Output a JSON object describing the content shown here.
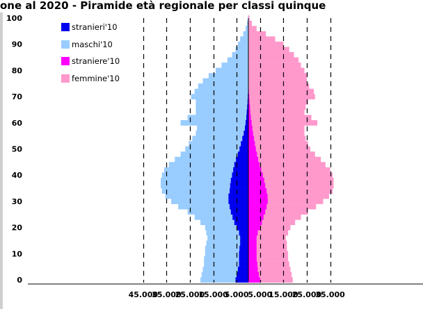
{
  "title": "one al 2020 - Piramide età regionale per classi quinque",
  "chart_data": {
    "type": "bar",
    "orientation": "horizontal-pyramid",
    "y_axis": {
      "min": 0,
      "max": 100,
      "ticks": [
        "0",
        "10",
        "20",
        "30",
        "40",
        "50",
        "60",
        "70",
        "80",
        "90",
        "100"
      ]
    },
    "x_axis": {
      "min": -45000,
      "max": 40000,
      "ticks": [
        {
          "value": -45000,
          "label": "45.000"
        },
        {
          "value": -35000,
          "label": "35.000"
        },
        {
          "value": -25000,
          "label": "25.000"
        },
        {
          "value": -15000,
          "label": "15.000"
        },
        {
          "value": -5000,
          "label": "5.000"
        },
        {
          "value": 5000,
          "label": "5.000"
        },
        {
          "value": 15000,
          "label": "15.000"
        },
        {
          "value": 25000,
          "label": "25.000"
        },
        {
          "value": 35000,
          "label": "35.000"
        }
      ]
    },
    "legend": {
      "placement": "top-left",
      "entries": [
        {
          "label": "stranieri'10",
          "color": "#0000ee"
        },
        {
          "label": "maschi'10",
          "color": "#99ccff"
        },
        {
          "label": "straniere'10",
          "color": "#ff00ff"
        },
        {
          "label": "femmine'10",
          "color": "#ff99cc"
        }
      ]
    },
    "series": [
      {
        "name": "maschi'10",
        "side": "left",
        "color": "#99ccff",
        "x": [
          0,
          2,
          4,
          6,
          8,
          10,
          12,
          14,
          16,
          18,
          20,
          22,
          24,
          26,
          28,
          30,
          32,
          34,
          36,
          38,
          40,
          42,
          44,
          46,
          48,
          50,
          52,
          54,
          56,
          58,
          60,
          62,
          64,
          66,
          68,
          70,
          72,
          74,
          76,
          78,
          80,
          82,
          84,
          86,
          88,
          90,
          92,
          94,
          96,
          98,
          100
        ],
        "values": [
          20500,
          20000,
          19500,
          19000,
          19000,
          18500,
          18500,
          18000,
          17500,
          18000,
          18500,
          20500,
          23000,
          26000,
          30000,
          33000,
          35500,
          37000,
          37500,
          37500,
          37000,
          36000,
          34000,
          31500,
          29000,
          27000,
          25500,
          24000,
          22500,
          22000,
          29000,
          26000,
          22500,
          22500,
          22500,
          24500,
          23000,
          21500,
          19500,
          17000,
          14000,
          11500,
          9000,
          7000,
          5500,
          4500,
          3500,
          2200,
          1200,
          600,
          200
        ]
      },
      {
        "name": "stranieri'10",
        "side": "left",
        "color": "#0000ee",
        "x": [
          0,
          2,
          4,
          6,
          8,
          10,
          12,
          14,
          16,
          18,
          20,
          22,
          24,
          26,
          28,
          30,
          32,
          34,
          36,
          38,
          40,
          42,
          44,
          46,
          48,
          50,
          52,
          54,
          56,
          58,
          60,
          62,
          64,
          66,
          68,
          70,
          72,
          74,
          76,
          78,
          80,
          82,
          84,
          86,
          88,
          90,
          92,
          94,
          96,
          98,
          100
        ],
        "values": [
          5500,
          5000,
          4500,
          4000,
          4000,
          4000,
          3800,
          3500,
          3500,
          4000,
          5000,
          6000,
          6800,
          7500,
          8000,
          8500,
          8500,
          8000,
          7800,
          7500,
          7000,
          6500,
          6000,
          5300,
          4500,
          3800,
          3200,
          2600,
          2000,
          1500,
          1200,
          900,
          700,
          500,
          350,
          250,
          150,
          100,
          80,
          50,
          30,
          20,
          10,
          5,
          0,
          0,
          0,
          0,
          0,
          0,
          0
        ]
      },
      {
        "name": "femmine'10",
        "side": "right",
        "color": "#ff99cc",
        "x": [
          0,
          2,
          4,
          6,
          8,
          10,
          12,
          14,
          16,
          18,
          20,
          22,
          24,
          26,
          28,
          30,
          32,
          34,
          36,
          38,
          40,
          42,
          44,
          46,
          48,
          50,
          52,
          54,
          56,
          58,
          60,
          62,
          64,
          66,
          68,
          70,
          72,
          74,
          76,
          78,
          80,
          82,
          84,
          86,
          88,
          90,
          92,
          94,
          96,
          98,
          100
        ],
        "values": [
          19000,
          18500,
          18000,
          17500,
          17000,
          17000,
          16500,
          16500,
          16000,
          17000,
          18000,
          20000,
          22500,
          25500,
          29000,
          32000,
          34500,
          36000,
          36500,
          36500,
          36000,
          35000,
          33000,
          31000,
          28500,
          26500,
          25500,
          24500,
          24000,
          24000,
          29500,
          27000,
          24000,
          24500,
          25500,
          28500,
          28000,
          26000,
          25000,
          25000,
          24000,
          22500,
          21500,
          19500,
          17500,
          15000,
          11500,
          7500,
          3500,
          1500,
          500
        ]
      },
      {
        "name": "straniere'10",
        "side": "right",
        "color": "#ff00ff",
        "x": [
          0,
          2,
          4,
          6,
          8,
          10,
          12,
          14,
          16,
          18,
          20,
          22,
          24,
          26,
          28,
          30,
          32,
          34,
          36,
          38,
          40,
          42,
          44,
          46,
          48,
          50,
          52,
          54,
          56,
          58,
          60,
          62,
          64,
          66,
          68,
          70,
          72,
          74,
          76,
          78,
          80,
          82,
          84,
          86,
          88,
          90,
          92,
          94,
          96,
          98,
          100
        ],
        "values": [
          5000,
          4500,
          4000,
          3800,
          3500,
          3500,
          3500,
          3500,
          3500,
          4000,
          5000,
          5800,
          6500,
          7200,
          7800,
          8300,
          8200,
          7800,
          7200,
          6800,
          6200,
          5500,
          4800,
          4200,
          3700,
          3200,
          2800,
          2400,
          2000,
          1700,
          1400,
          1100,
          900,
          700,
          500,
          350,
          250,
          150,
          100,
          70,
          40,
          20,
          10,
          5,
          0,
          0,
          0,
          0,
          0,
          0,
          0
        ]
      }
    ],
    "grid": "vertical dashed",
    "xlabel": "",
    "ylabel": ""
  }
}
